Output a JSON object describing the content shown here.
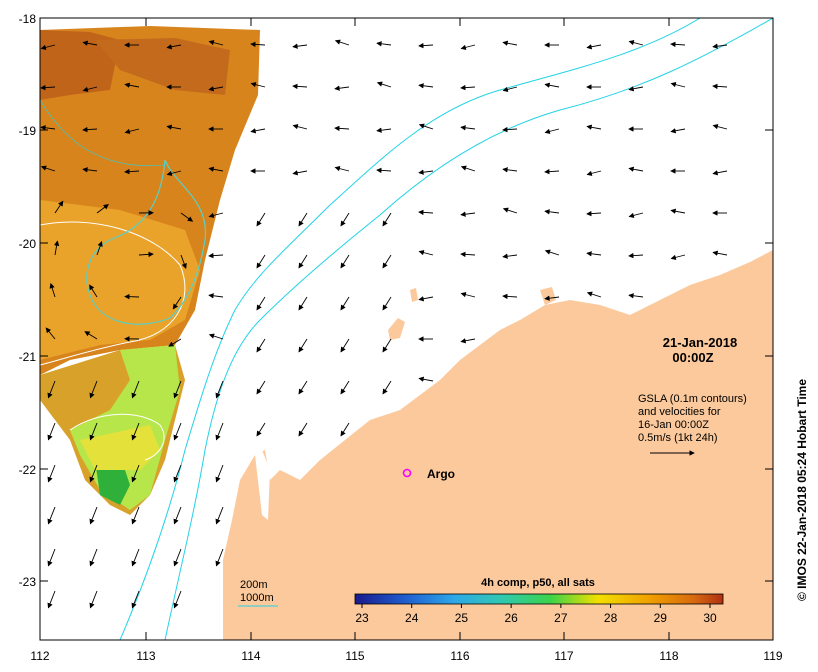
{
  "map": {
    "date": "21-Jan-2018",
    "time": "00:00Z",
    "legend_lines": [
      "GSLA (0.1m contours)",
      "and velocities for",
      "16-Jan 00:00Z",
      "0.5m/s (1kt 24h)"
    ],
    "argo_label": "Argo",
    "credit": "© IMOS 22-Jan-2018 05:24 Hobart Time",
    "bathy_legend": {
      "shallow": "200m",
      "deep": "1000m"
    },
    "colorbar": {
      "title": "4h comp, p50, all sats",
      "ticks": [
        "23",
        "24",
        "25",
        "26",
        "27",
        "28",
        "29",
        "30"
      ],
      "colors": [
        "#1a1a8c",
        "#1f5fd0",
        "#2fa8e8",
        "#30c8b0",
        "#3ad34a",
        "#a6e62a",
        "#f2e000",
        "#f0a000",
        "#d86a10",
        "#b03010"
      ]
    },
    "lon_ticks": [
      "112",
      "113",
      "114",
      "115",
      "116",
      "117",
      "118",
      "119"
    ],
    "lat_ticks": [
      "-18",
      "-19",
      "-20",
      "-21",
      "-22",
      "-23"
    ],
    "colors": {
      "land": "#fbc99b",
      "shelf_contour": "#22d3e6",
      "argo_marker": "#ff00ff",
      "warm_water": "#d8841c",
      "cool_water": "#b6e64a"
    }
  }
}
